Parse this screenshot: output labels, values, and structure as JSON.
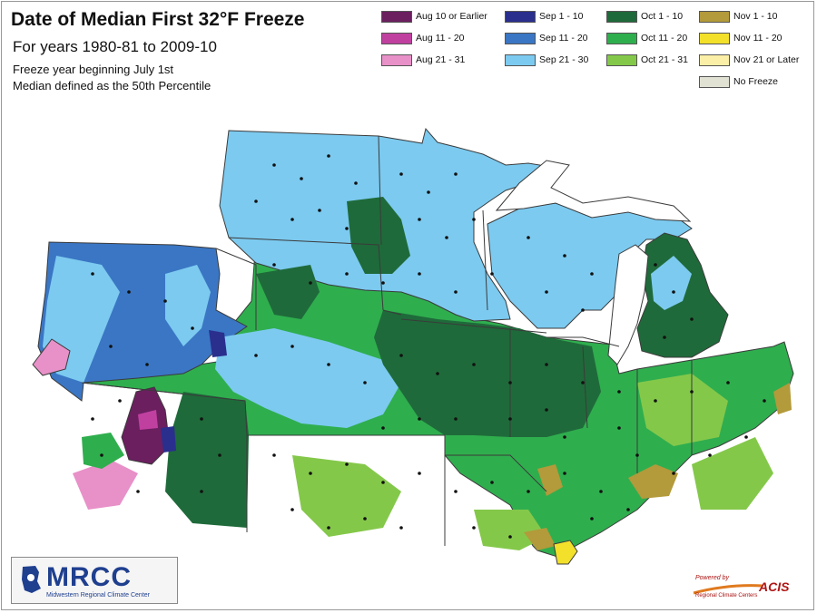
{
  "header": {
    "title": "Date of Median First 32°F Freeze",
    "subtitle": "For years 1980-81 to 2009-10",
    "note1": "Freeze year beginning July 1st",
    "note2": "Median defined as the 50th Percentile"
  },
  "legend": [
    {
      "label": "Aug 10 or Earlier",
      "color": "#6b1f5f"
    },
    {
      "label": "Aug 11 - 20",
      "color": "#c040a0"
    },
    {
      "label": "Aug 21 - 31",
      "color": "#e890c8"
    },
    {
      "label": "Sep 1 - 10",
      "color": "#2a2f8e"
    },
    {
      "label": "Sep 11 - 20",
      "color": "#3a76c4"
    },
    {
      "label": "Sep 21 - 30",
      "color": "#7ccaf0"
    },
    {
      "label": "Oct 1 - 10",
      "color": "#1f6a3a"
    },
    {
      "label": "Oct 11 - 20",
      "color": "#2fae4e"
    },
    {
      "label": "Oct 21 - 31",
      "color": "#84c84a"
    },
    {
      "label": "Nov 1 - 10",
      "color": "#b39a3a"
    },
    {
      "label": "Nov 11 - 20",
      "color": "#f2e02a"
    },
    {
      "label": "Nov 21 or Later",
      "color": "#fbeea6"
    },
    {
      "label": "No Freeze",
      "color": "#e2e2d4"
    }
  ],
  "logo": {
    "name": "MRCC",
    "subtitle": "Midwestern Regional Climate Center"
  },
  "credit": {
    "prefix": "Powered by",
    "name": "ACIS",
    "subtitle": "Regional Climate Centers"
  }
}
